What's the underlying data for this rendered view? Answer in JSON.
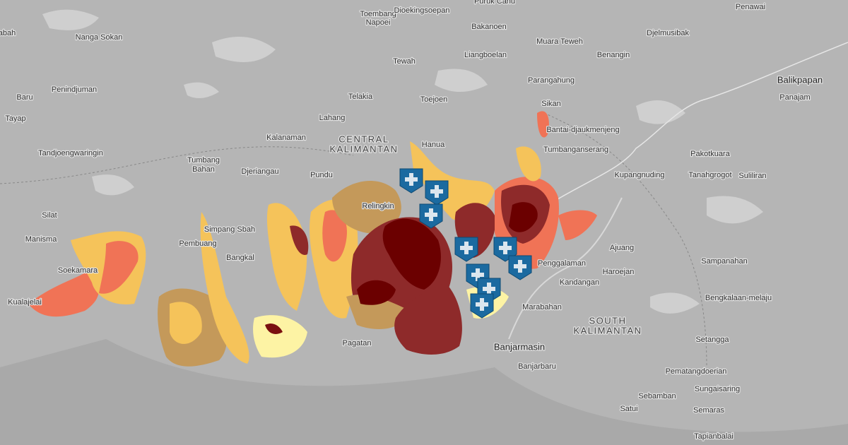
{
  "map": {
    "places": [
      "abah",
      "Nanga Sokan",
      "Toembang",
      "Napoei",
      "Dioekingsoepan",
      "Puruk Cahu",
      "Penawai",
      "Bakanoen",
      "Djelmusibak",
      "Muara Teweh",
      "Benangin",
      "Liangboelan",
      "Tewah",
      "Balikpapan",
      "Panajam",
      "Baru",
      "Penindjuman",
      "Telakia",
      "Toejoen",
      "Parangahung",
      "Sikan",
      "Tayap",
      "Lahang",
      "Bantai-djaukmenjeng",
      "Kalanaman",
      "Hanua",
      "Tumbanganserang",
      "Pakotkuara",
      "Tandjoengwaringin",
      "Tumbang",
      "Bahan",
      "Kupangnuding",
      "Tanahgrogot",
      "Suliliran",
      "Djeriangau",
      "Pundu",
      "Relingkin",
      "Silat",
      "Manisma",
      "Simpang Sbah",
      "Pembuang",
      "Bangkal",
      "Ajuang",
      "Sampanahan",
      "Penggalaman",
      "Haroejan",
      "Soekamara",
      "Kandangan",
      "Marabahan",
      "Kualajelai",
      "Bengkalaan-melaju",
      "Pagatan",
      "Banjarmasin",
      "Banjarbaru",
      "Setangga",
      "Pematangdoerian",
      "Sungaisaring",
      "Sebamban",
      "Satui",
      "Semaras",
      "Tapianbalai"
    ],
    "regions": [
      "CENTRAL",
      "KALIMANTAN",
      "SOUTH",
      "KALIMANTAN"
    ]
  }
}
